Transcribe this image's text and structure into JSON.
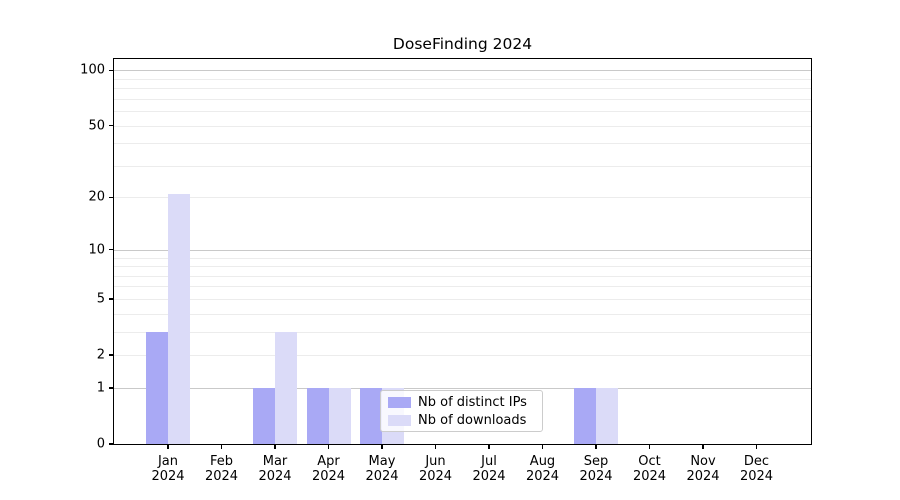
{
  "chart_data": {
    "type": "bar",
    "title": "DoseFinding 2024",
    "year_label": "2024",
    "categories": [
      "Jan",
      "Feb",
      "Mar",
      "Apr",
      "May",
      "Jun",
      "Jul",
      "Aug",
      "Sep",
      "Oct",
      "Nov",
      "Dec"
    ],
    "series": [
      {
        "name": "Nb of distinct IPs",
        "color": "#a9a9f5",
        "values": [
          3,
          0,
          1,
          1,
          1,
          0,
          0,
          0,
          1,
          0,
          0,
          0
        ]
      },
      {
        "name": "Nb of downloads",
        "color": "#dbdbf8",
        "values": [
          21,
          0,
          3,
          1,
          1,
          0,
          0,
          0,
          1,
          0,
          0,
          0
        ]
      }
    ],
    "y_scale": "log1p",
    "ylim": [
      0,
      115
    ],
    "yticks": [
      0,
      1,
      2,
      5,
      10,
      20,
      50,
      100
    ],
    "gridlines": {
      "major": [
        1,
        10,
        100
      ],
      "minor": [
        2,
        3,
        4,
        5,
        6,
        7,
        8,
        9,
        20,
        30,
        40,
        50,
        60,
        70,
        80,
        90
      ]
    },
    "legend_position": "lower center",
    "grid_on": true,
    "colors": {
      "axis": "#000000",
      "grid_major": "#c9c9c9",
      "grid_minor": "#ececec",
      "background": "#ffffff"
    }
  }
}
